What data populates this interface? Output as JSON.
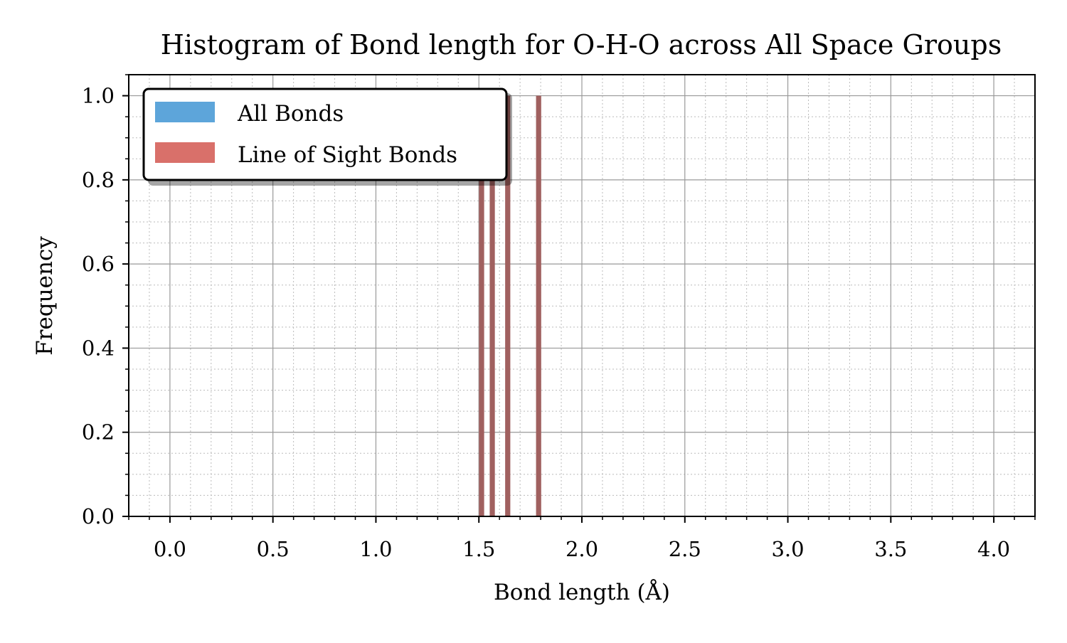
{
  "chart_data": {
    "type": "bar",
    "title": "Histogram of Bond length for O-H-O across All Space Groups",
    "xlabel": "Bond length (Å)",
    "ylabel": "Frequency",
    "xlim": [
      -0.2,
      4.2
    ],
    "ylim": [
      0.0,
      1.05
    ],
    "xticks": [
      0.0,
      0.5,
      1.0,
      1.5,
      2.0,
      2.5,
      3.0,
      3.5,
      4.0
    ],
    "xtick_labels": [
      "0.0",
      "0.5",
      "1.0",
      "1.5",
      "2.0",
      "2.5",
      "3.0",
      "3.5",
      "4.0"
    ],
    "yticks": [
      0.0,
      0.2,
      0.4,
      0.6,
      0.8,
      1.0
    ],
    "ytick_labels": [
      "0.0",
      "0.2",
      "0.4",
      "0.6",
      "0.8",
      "1.0"
    ],
    "grid": true,
    "legend_position": "top-left",
    "bin_width": 0.025,
    "series": [
      {
        "name": "All Bonds",
        "color": "#5DA5DA",
        "x": [
          1.513,
          1.565,
          1.64,
          1.79
        ],
        "values": [
          1.0,
          1.0,
          1.0,
          1.0
        ]
      },
      {
        "name": "Line of Sight Bonds",
        "color": "#D9706A",
        "x": [
          1.513,
          1.565,
          1.64,
          1.79
        ],
        "values": [
          1.0,
          1.0,
          1.0,
          1.0
        ]
      }
    ],
    "overlap_color": "#A0605F"
  }
}
